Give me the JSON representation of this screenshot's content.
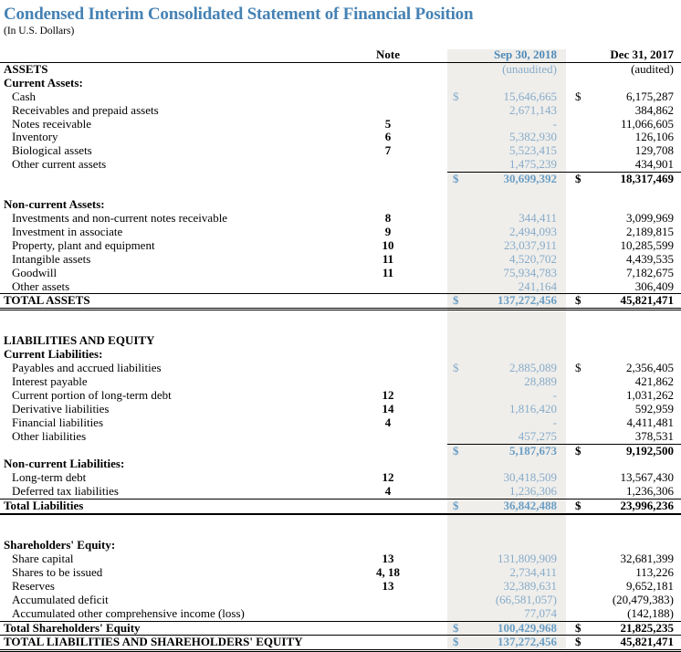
{
  "title": "Condensed Interim Consolidated Statement of Financial Position",
  "subtitle": "(In U.S. Dollars)",
  "colors": {
    "title_blue": "#4682b4",
    "header_blue": "#4f8ab8",
    "value_blue": "#87abc9",
    "total_blue": "#6b9ec4",
    "column_band": "#efeeeb",
    "text": "#000000"
  },
  "table": {
    "header": {
      "note": "Note",
      "current": "Sep 30, 2018",
      "prior": "Dec 31, 2017"
    },
    "rows": [
      {
        "type": "audit",
        "label": "ASSETS",
        "current": "(unaudited)",
        "prior": "(audited)"
      },
      {
        "type": "group",
        "label": "Current Assets:"
      },
      {
        "type": "item",
        "label": "Cash",
        "note": "",
        "current": "15,646,665",
        "prior": "6,175,287",
        "dollar_current": true,
        "dollar_prior": true
      },
      {
        "type": "item",
        "label": "Receivables and prepaid assets",
        "note": "",
        "current": "2,671,143",
        "prior": "384,862"
      },
      {
        "type": "item",
        "label": "Notes receivable",
        "note": "5",
        "current": "-",
        "prior": "11,066,605"
      },
      {
        "type": "item",
        "label": "Inventory",
        "note": "6",
        "current": "5,382,930",
        "prior": "126,106"
      },
      {
        "type": "item",
        "label": "Biological assets",
        "note": "7",
        "current": "5,523,415",
        "prior": "129,708"
      },
      {
        "type": "item",
        "label": "Other current assets",
        "note": "",
        "current": "1,475,239",
        "prior": "434,901"
      },
      {
        "type": "subtotal",
        "label": "",
        "current": "30,699,392",
        "prior": "18,317,469",
        "dollar_current": true,
        "dollar_prior": true
      },
      {
        "type": "blank"
      },
      {
        "type": "group",
        "label": "Non-current Assets:"
      },
      {
        "type": "item",
        "label": "Investments and non-current notes receivable",
        "note": "8",
        "current": "344,411",
        "prior": "3,099,969"
      },
      {
        "type": "item",
        "label": "Investment in associate",
        "note": "9",
        "current": "2,494,093",
        "prior": "2,189,815"
      },
      {
        "type": "item",
        "label": "Property, plant and equipment",
        "note": "10",
        "current": "23,037,911",
        "prior": "10,285,599"
      },
      {
        "type": "item",
        "label": "Intangible assets",
        "note": "11",
        "current": "4,520,702",
        "prior": "4,439,535"
      },
      {
        "type": "item",
        "label": "Goodwill",
        "note": "11",
        "current": "75,934,783",
        "prior": "7,182,675"
      },
      {
        "type": "item",
        "label": "Other assets",
        "note": "",
        "current": "241,164",
        "prior": "306,409"
      },
      {
        "type": "total",
        "variant": "grand",
        "label": "TOTAL ASSETS",
        "current": "137,272,456",
        "prior": "45,821,471",
        "dollar_current": true,
        "dollar_prior": true
      },
      {
        "type": "blank"
      },
      {
        "type": "blank"
      },
      {
        "type": "group",
        "label": "LIABILITIES AND EQUITY"
      },
      {
        "type": "group",
        "label": "Current Liabilities:"
      },
      {
        "type": "item",
        "label": "Payables and accrued liabilities",
        "note": "",
        "current": "2,885,089",
        "prior": "2,356,405",
        "dollar_current": true,
        "dollar_prior": true
      },
      {
        "type": "item",
        "label": "Interest payable",
        "note": "",
        "current": "28,889",
        "prior": "421,862"
      },
      {
        "type": "item",
        "label": "Current portion of long-term debt",
        "note": "12",
        "current": "-",
        "prior": "1,031,262"
      },
      {
        "type": "item",
        "label": "Derivative liabilities",
        "note": "14",
        "current": "1,816,420",
        "prior": "592,959"
      },
      {
        "type": "item",
        "label": "Financial liabilities",
        "note": "4",
        "current": "-",
        "prior": "4,411,481"
      },
      {
        "type": "item",
        "label": "Other liabilities",
        "note": "",
        "current": "457,275",
        "prior": "378,531"
      },
      {
        "type": "subtotal",
        "label": "",
        "current": "5,187,673",
        "prior": "9,192,500",
        "dollar_current": true,
        "dollar_prior": true
      },
      {
        "type": "group",
        "label": "Non-current Liabilities:"
      },
      {
        "type": "item",
        "label": "Long-term debt",
        "note": "12",
        "current": "30,418,509",
        "prior": "13,567,430"
      },
      {
        "type": "item",
        "label": "Deferred tax liabilities",
        "note": "4",
        "current": "1,236,306",
        "prior": "1,236,306"
      },
      {
        "type": "total",
        "variant": "closed",
        "label": "Total Liabilities",
        "current": "36,842,488",
        "prior": "23,996,236",
        "dollar_current": true,
        "dollar_prior": true
      },
      {
        "type": "blank"
      },
      {
        "type": "blank"
      },
      {
        "type": "group",
        "label": "Shareholders' Equity:"
      },
      {
        "type": "item",
        "label": "Share capital",
        "note": "13",
        "current": "131,809,909",
        "prior": "32,681,399"
      },
      {
        "type": "item",
        "label": "Shares to be issued",
        "note": "4, 18",
        "current": "2,734,411",
        "prior": "113,226"
      },
      {
        "type": "item",
        "label": "Reserves",
        "note": "13",
        "current": "32,389,631",
        "prior": "9,652,181"
      },
      {
        "type": "item",
        "label": "Accumulated deficit",
        "note": "",
        "current": "(66,581,057)",
        "prior": "(20,479,383)"
      },
      {
        "type": "item",
        "label": "Accumulated other comprehensive income (loss)",
        "note": "",
        "current": "77,074",
        "prior": "(142,188)"
      },
      {
        "type": "total",
        "variant": "open",
        "label": "Total Shareholders' Equity",
        "current": "100,429,968",
        "prior": "21,825,235",
        "dollar_current": true,
        "dollar_prior": true
      },
      {
        "type": "total",
        "variant": "grand",
        "label": "TOTAL LIABILITIES AND SHAREHOLDERS' EQUITY",
        "current": "137,272,456",
        "prior": "45,821,471",
        "dollar_current": true,
        "dollar_prior": true
      }
    ]
  }
}
